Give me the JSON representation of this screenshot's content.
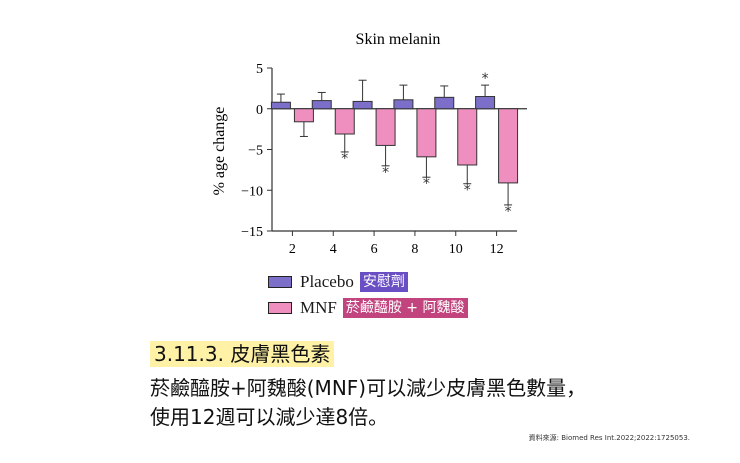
{
  "chart_data": {
    "type": "bar",
    "title": "Skin melanin",
    "ylabel": "% age change",
    "xlabel": "",
    "categories": [
      "2",
      "4",
      "6",
      "8",
      "10",
      "12"
    ],
    "ylim": [
      -15,
      5
    ],
    "yticks": [
      "5",
      "0",
      "−5",
      "−10",
      "−15"
    ],
    "ytick_values": [
      5,
      0,
      -5,
      -10,
      -15
    ],
    "significance_marker": "*",
    "series": [
      {
        "name": "Placebo",
        "name_zh": "安慰劑",
        "color": "#7b6fc9",
        "label_bg": "#6a4fc4",
        "values": [
          0.8,
          1.0,
          0.9,
          1.1,
          1.4,
          1.5
        ],
        "error": [
          1.0,
          1.0,
          2.6,
          1.8,
          1.4,
          1.4
        ],
        "significant": [
          false,
          false,
          false,
          false,
          false,
          true
        ]
      },
      {
        "name": "MNF",
        "name_zh": "菸鹼醯胺 + 阿魏酸",
        "color": "#ef8fc0",
        "label_bg": "#c2447f",
        "values": [
          -1.6,
          -3.1,
          -4.5,
          -5.9,
          -6.9,
          -9.1
        ],
        "error": [
          1.8,
          2.2,
          2.5,
          2.5,
          2.3,
          2.7
        ],
        "significant": [
          false,
          true,
          true,
          true,
          true,
          true
        ]
      }
    ],
    "legend_position": "bottom-left"
  },
  "text": {
    "heading": "3.11.3. 皮膚黑色素",
    "line1": "菸鹼醯胺+阿魏酸(MNF)可以減少皮膚黑色數量，",
    "line2": "使用12週可以減少達8倍。",
    "citation": "資料來源: Biomed Res Int.2022;2022:1725053."
  }
}
